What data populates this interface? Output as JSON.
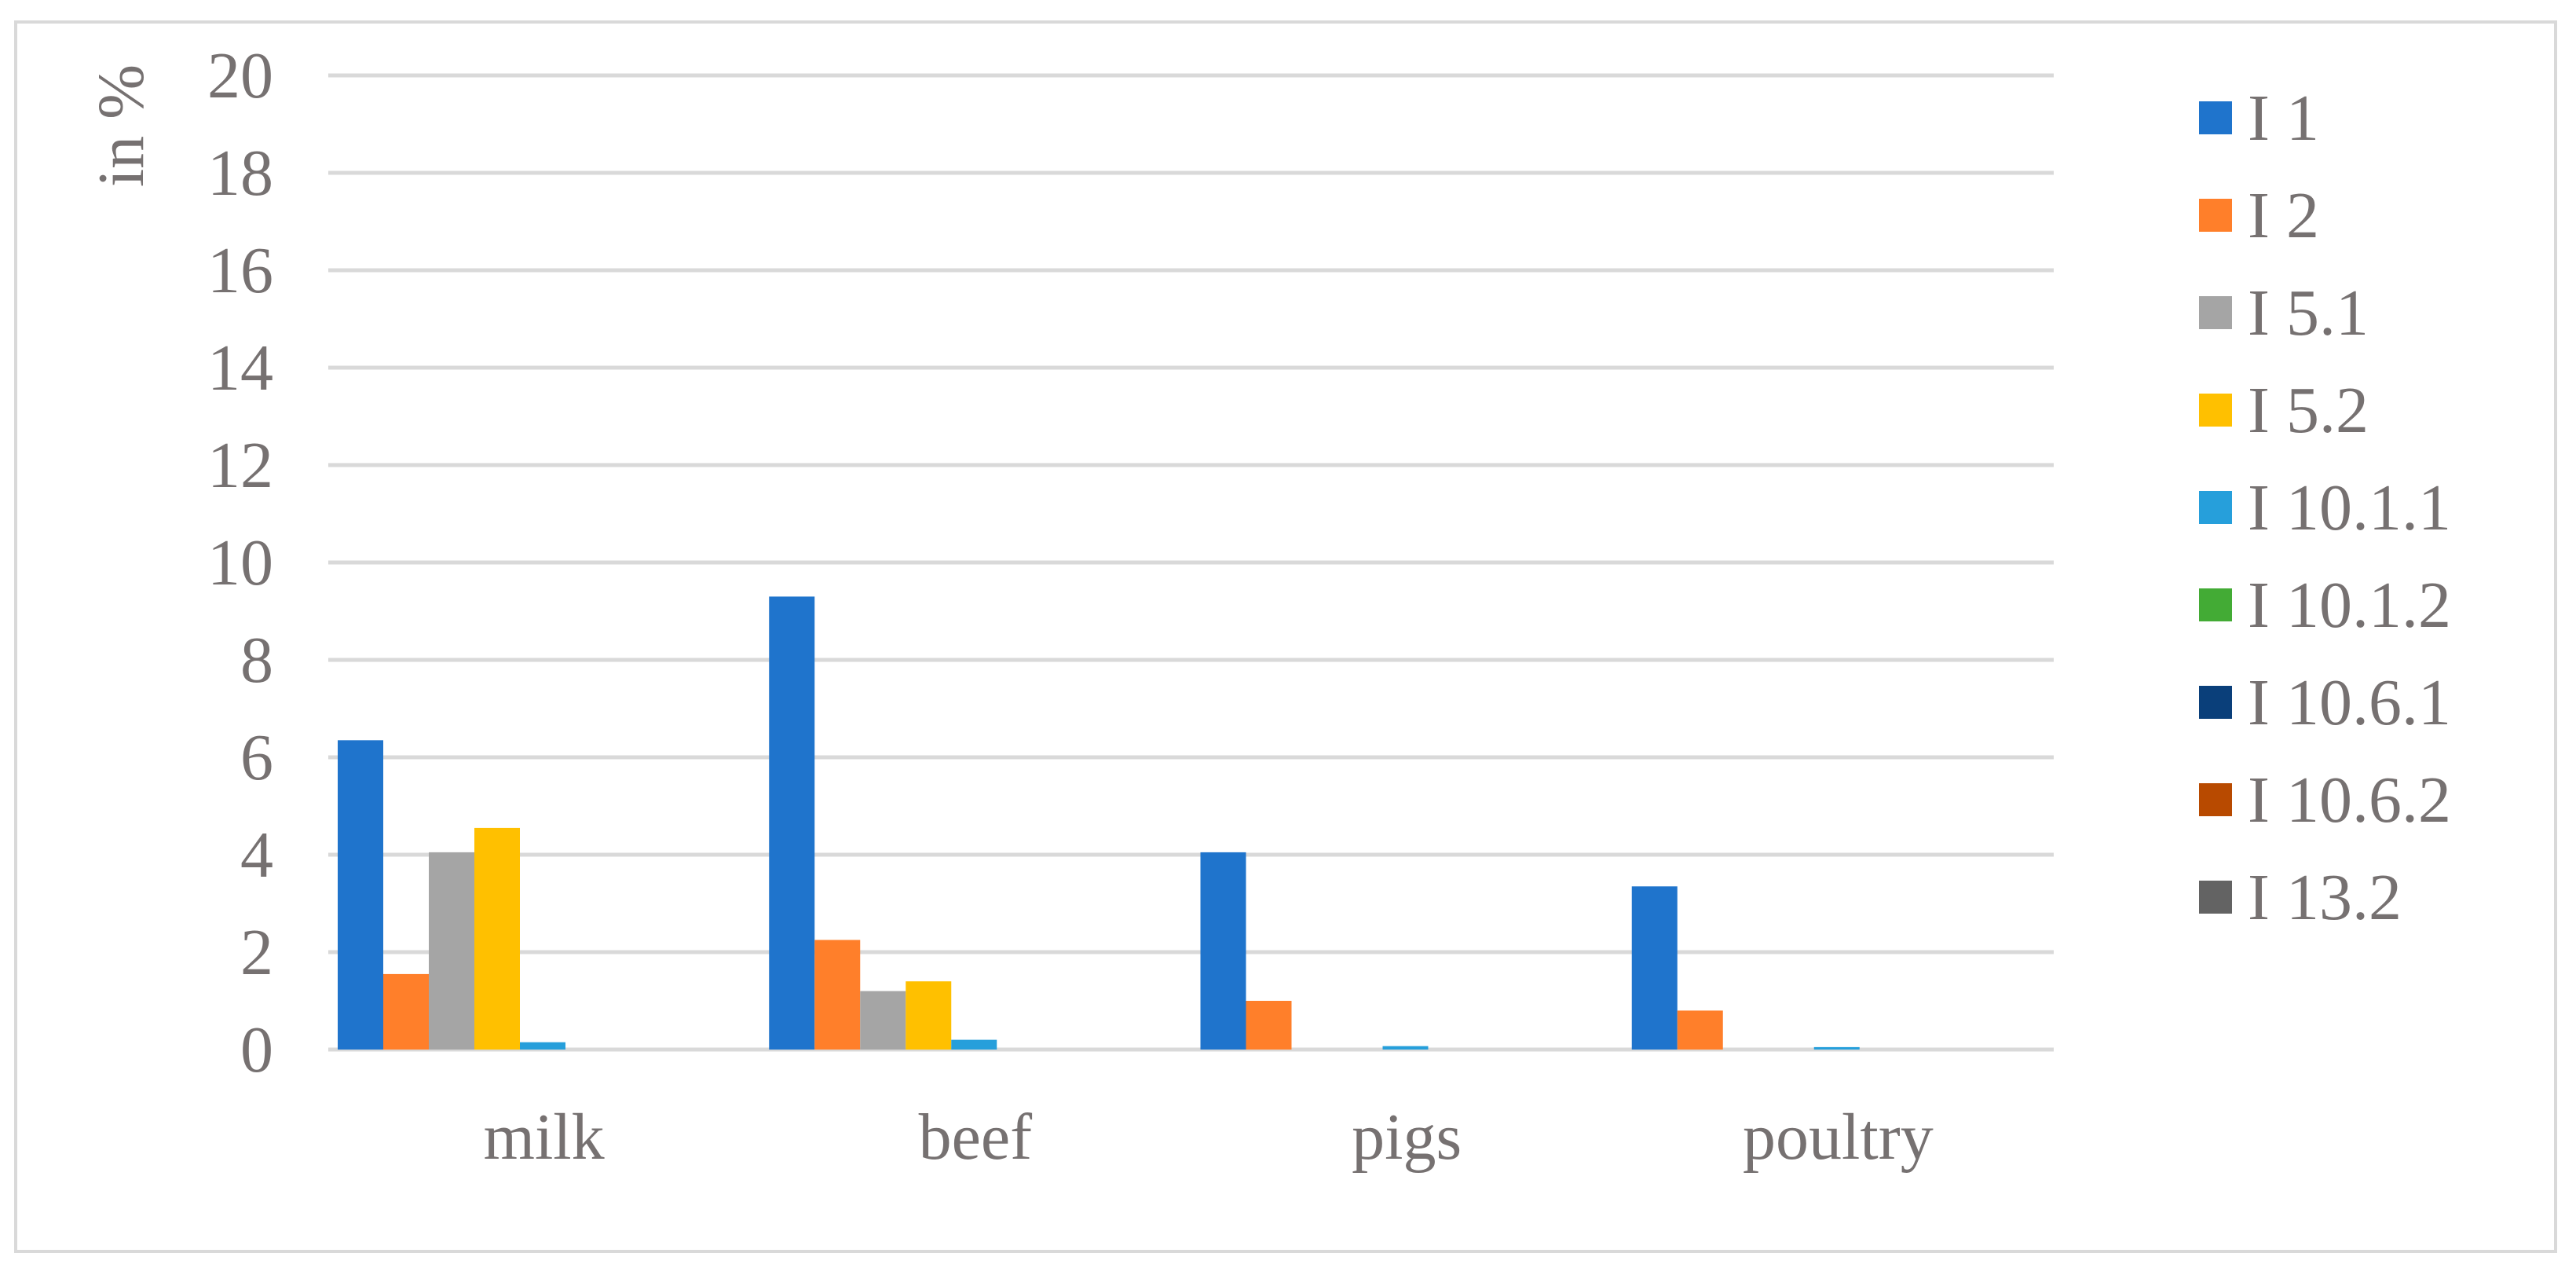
{
  "chart_data": {
    "type": "bar",
    "ylabel": "in %",
    "xlabel": "",
    "title": "",
    "ylim": [
      0,
      20
    ],
    "yticks": [
      0,
      2,
      4,
      6,
      8,
      10,
      12,
      14,
      16,
      18,
      20
    ],
    "grid": true,
    "legend_position": "right",
    "categories": [
      "milk",
      "beef",
      "pigs",
      "poultry"
    ],
    "series": [
      {
        "name": "I 1",
        "color": "#1f74cc",
        "values": [
          6.35,
          9.3,
          4.05,
          3.35
        ]
      },
      {
        "name": "I 2",
        "color": "#ff7f2a",
        "values": [
          1.55,
          2.25,
          1.0,
          0.8
        ]
      },
      {
        "name": "I 5.1",
        "color": "#a5a5a5",
        "values": [
          4.05,
          1.2,
          0,
          0
        ]
      },
      {
        "name": "I 5.2",
        "color": "#ffc000",
        "values": [
          4.55,
          1.4,
          0,
          0
        ]
      },
      {
        "name": "I 10.1.1",
        "color": "#269fdb",
        "values": [
          0.15,
          0.2,
          0.07,
          0.05
        ]
      },
      {
        "name": "I 10.1.2",
        "color": "#43ab35",
        "values": [
          0,
          0,
          0,
          0
        ]
      },
      {
        "name": "I 10.6.1",
        "color": "#0a3f7a",
        "values": [
          0,
          0,
          0,
          0
        ]
      },
      {
        "name": "I 10.6.2",
        "color": "#b84a00",
        "values": [
          0,
          0,
          0,
          0
        ]
      },
      {
        "name": "I 13.2",
        "color": "#636363",
        "values": [
          0,
          0,
          0,
          0
        ]
      }
    ]
  }
}
